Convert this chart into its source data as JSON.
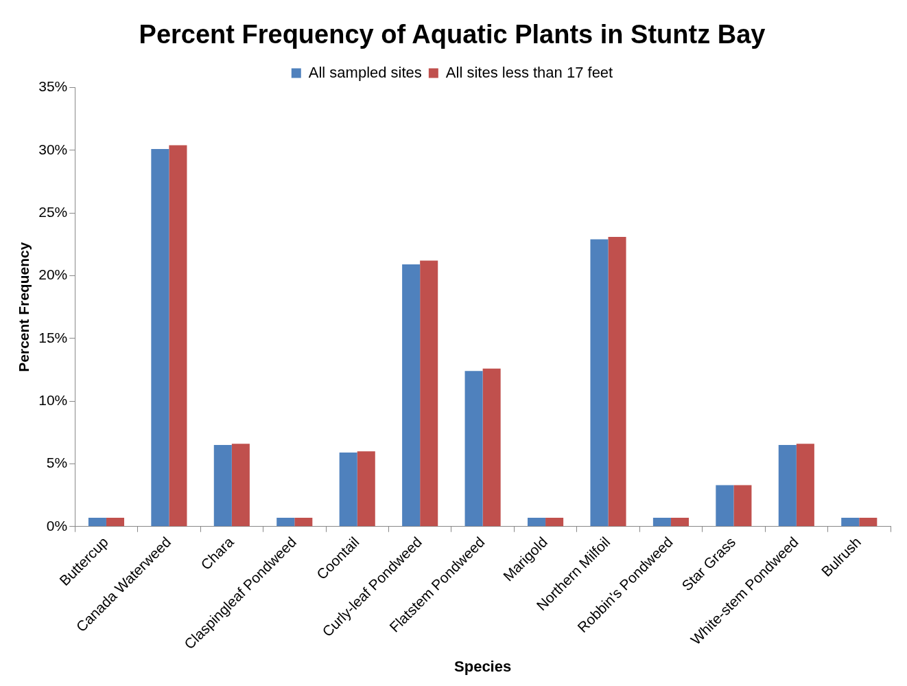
{
  "chart_data": {
    "type": "bar",
    "title": "Percent Frequency of Aquatic Plants in Stuntz Bay",
    "xlabel": "Species",
    "ylabel": "Percent Frequency",
    "categories": [
      "Buttercup",
      "Canada Waterweed",
      "Chara",
      "Claspingleaf Pondweed",
      "Coontail",
      "Curly-leaf Pondweed",
      "Flatstem Pondweed",
      "Marigold",
      "Northern Milfoil",
      "Robbin's Pondweed",
      "Star Grass",
      "White-stem Pondweed",
      "Bulrush"
    ],
    "series": [
      {
        "name": "All sampled sites",
        "color": "#4f81bd",
        "values": [
          0.7,
          30.1,
          6.5,
          0.7,
          5.9,
          20.9,
          12.4,
          0.7,
          22.9,
          0.7,
          3.3,
          6.5,
          0.7
        ]
      },
      {
        "name": "All sites less than 17 feet",
        "color": "#c0504d",
        "values": [
          0.7,
          30.4,
          6.6,
          0.7,
          6.0,
          21.2,
          12.6,
          0.7,
          23.1,
          0.7,
          3.3,
          6.6,
          0.7
        ]
      }
    ],
    "ylim": [
      0,
      35
    ],
    "yticks": [
      {
        "value": 0,
        "label": "0%"
      },
      {
        "value": 5,
        "label": "5%"
      },
      {
        "value": 10,
        "label": "10%"
      },
      {
        "value": 15,
        "label": "15%"
      },
      {
        "value": 20,
        "label": "20%"
      },
      {
        "value": 25,
        "label": "25%"
      },
      {
        "value": 30,
        "label": "30%"
      },
      {
        "value": 35,
        "label": "35%"
      }
    ],
    "grid": false,
    "legend": "top"
  }
}
